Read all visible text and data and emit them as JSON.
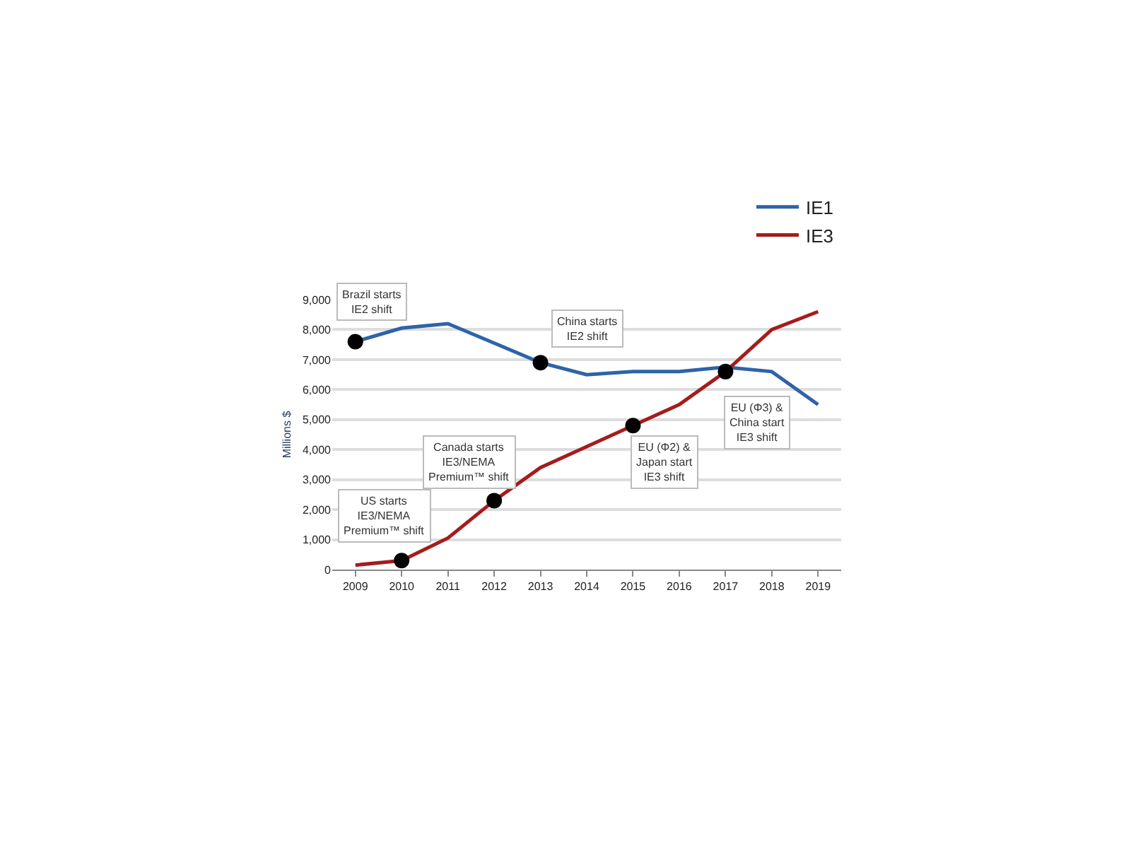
{
  "chart_data": {
    "type": "line",
    "ylabel": "Millions $",
    "x": [
      2009,
      2010,
      2011,
      2012,
      2013,
      2014,
      2015,
      2016,
      2017,
      2018,
      2019
    ],
    "series": [
      {
        "name": "IE1",
        "color": "#2e63a8",
        "values": [
          7600,
          8050,
          8200,
          7550,
          6900,
          6500,
          6600,
          6600,
          6750,
          6600,
          5500
        ]
      },
      {
        "name": "IE3",
        "color": "#a51c1c",
        "values": [
          150,
          300,
          1050,
          2300,
          3400,
          4100,
          4800,
          5500,
          6600,
          8000,
          8600
        ]
      },
      {
        "type": "scatter",
        "color": "#000000",
        "marker": "circle",
        "x": [
          2009,
          2010,
          2012,
          2013,
          2015,
          2017
        ],
        "values": [
          7600,
          300,
          2300,
          6900,
          4800,
          6600
        ]
      }
    ],
    "xlim": [
      2008.5,
      2019.5
    ],
    "xticks": [
      2009,
      2010,
      2011,
      2012,
      2013,
      2014,
      2015,
      2016,
      2017,
      2018,
      2019
    ],
    "ylim": [
      0,
      9000
    ],
    "yticks": [
      {
        "value": 0,
        "label": "0"
      },
      {
        "value": 1000,
        "label": "1,000"
      },
      {
        "value": 2000,
        "label": "2,000"
      },
      {
        "value": 3000,
        "label": "3,000"
      },
      {
        "value": 4000,
        "label": "4,000"
      },
      {
        "value": 5000,
        "label": "5,000"
      },
      {
        "value": 6000,
        "label": "6,000"
      },
      {
        "value": 7000,
        "label": "7,000"
      },
      {
        "value": 8000,
        "label": "8,000"
      },
      {
        "value": 9000,
        "label": "9,000"
      }
    ],
    "grid": "y",
    "legend": "top right",
    "marker": "none",
    "line_style": "solid",
    "annotations": [
      {
        "text": "Brazil starts\nIE2 shift",
        "x": 2009,
        "y": 7600
      },
      {
        "text": "US starts\nIE3/NEMA\nPremium™ shift",
        "x": 2010,
        "y": 300
      },
      {
        "text": "Canada starts\nIE3/NEMA\nPremium™ shift",
        "x": 2012,
        "y": 2300
      },
      {
        "text": "China starts\nIE2 shift",
        "x": 2013,
        "y": 6900
      },
      {
        "text": "EU (Φ2) &\nJapan start\nIE3 shift",
        "x": 2015,
        "y": 4800
      },
      {
        "text": "EU (Φ3) &\nChina start\nIE3 shift",
        "x": 2017,
        "y": 6600
      }
    ]
  }
}
